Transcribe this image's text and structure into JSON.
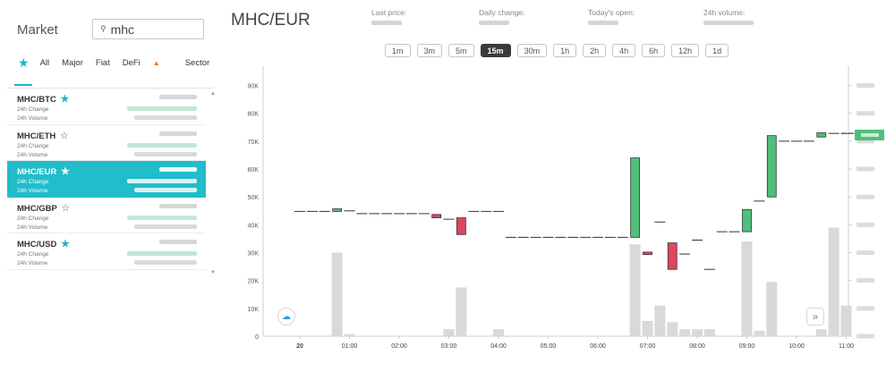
{
  "market": {
    "title": "Market",
    "search": {
      "value": "mhc",
      "icon": "search-icon"
    },
    "filters": [
      "All",
      "Major",
      "Fiat",
      "DeFi",
      "Sector"
    ],
    "change_label": "24h Change",
    "volume_label": "24h Volume",
    "pairs": [
      {
        "name": "MHC/BTC",
        "favorite": true,
        "active": false
      },
      {
        "name": "MHC/ETH",
        "favorite": false,
        "active": false
      },
      {
        "name": "MHC/EUR",
        "favorite": true,
        "active": true
      },
      {
        "name": "MHC/GBP",
        "favorite": false,
        "active": false
      },
      {
        "name": "MHC/USD",
        "favorite": true,
        "active": false
      }
    ]
  },
  "header": {
    "pair": "MHC/EUR",
    "stats": [
      "Last price:",
      "Daily change:",
      "Today's open:",
      "24h volume:"
    ]
  },
  "intervals": [
    "1m",
    "3m",
    "5m",
    "15m",
    "30m",
    "1h",
    "2h",
    "4h",
    "6h",
    "12h",
    "1d"
  ],
  "selected_interval": "15m",
  "colors": {
    "accent": "#21bdca",
    "up": "#4fc07b",
    "down": "#e0455e",
    "volume": "#d9d9d9"
  },
  "chart_data": {
    "type": "candlestick",
    "y_ticks": [
      "90K",
      "80K",
      "70K",
      "60K",
      "50K",
      "40K",
      "30K",
      "20K",
      "10K",
      "0"
    ],
    "x_ticks": [
      "20",
      "01:00",
      "02:00",
      "03:00",
      "04:00",
      "05:00",
      "06:00",
      "07:00",
      "08:00",
      "09:00",
      "10:00",
      "11:00"
    ],
    "ylim": [
      0,
      95000
    ],
    "candles": [
      {
        "t": 0.0,
        "o": 44800,
        "c": 44800
      },
      {
        "t": 0.25,
        "o": 44800,
        "c": 44800
      },
      {
        "t": 0.5,
        "o": 44800,
        "c": 44800
      },
      {
        "t": 0.75,
        "o": 44800,
        "c": 45700
      },
      {
        "t": 1.0,
        "o": 45000,
        "c": 45000
      },
      {
        "t": 1.25,
        "o": 44000,
        "c": 44000
      },
      {
        "t": 1.5,
        "o": 44000,
        "c": 44000
      },
      {
        "t": 1.75,
        "o": 44000,
        "c": 44000
      },
      {
        "t": 2.0,
        "o": 44000,
        "c": 44000
      },
      {
        "t": 2.25,
        "o": 44000,
        "c": 44000
      },
      {
        "t": 2.5,
        "o": 44000,
        "c": 44000
      },
      {
        "t": 2.75,
        "o": 43700,
        "c": 42500
      },
      {
        "t": 3.0,
        "o": 42000,
        "c": 42000
      },
      {
        "t": 3.25,
        "o": 42500,
        "c": 36500
      },
      {
        "t": 3.5,
        "o": 44800,
        "c": 44800
      },
      {
        "t": 3.75,
        "o": 44800,
        "c": 44800
      },
      {
        "t": 4.0,
        "o": 44800,
        "c": 44800
      },
      {
        "t": 4.25,
        "o": 35500,
        "c": 35500
      },
      {
        "t": 4.5,
        "o": 35500,
        "c": 35500
      },
      {
        "t": 4.75,
        "o": 35500,
        "c": 35500
      },
      {
        "t": 5.0,
        "o": 35500,
        "c": 35500
      },
      {
        "t": 5.25,
        "o": 35500,
        "c": 35500
      },
      {
        "t": 5.5,
        "o": 35500,
        "c": 35500
      },
      {
        "t": 5.75,
        "o": 35500,
        "c": 35500
      },
      {
        "t": 6.0,
        "o": 35500,
        "c": 35500
      },
      {
        "t": 6.25,
        "o": 35500,
        "c": 35500
      },
      {
        "t": 6.5,
        "o": 35500,
        "c": 35500
      },
      {
        "t": 6.75,
        "o": 35500,
        "c": 64000
      },
      {
        "t": 7.0,
        "o": 30200,
        "c": 29300
      },
      {
        "t": 7.25,
        "o": 41000,
        "c": 41000
      },
      {
        "t": 7.5,
        "o": 33500,
        "c": 24000
      },
      {
        "t": 7.75,
        "o": 29500,
        "c": 29500
      },
      {
        "t": 8.0,
        "o": 34500,
        "c": 34500
      },
      {
        "t": 8.25,
        "o": 24000,
        "c": 24000
      },
      {
        "t": 8.5,
        "o": 37500,
        "c": 37500
      },
      {
        "t": 8.75,
        "o": 37500,
        "c": 37500
      },
      {
        "t": 9.0,
        "o": 37500,
        "c": 45500
      },
      {
        "t": 9.25,
        "o": 48500,
        "c": 48500
      },
      {
        "t": 9.5,
        "o": 50000,
        "c": 72000
      },
      {
        "t": 9.75,
        "o": 70000,
        "c": 70000
      },
      {
        "t": 10.0,
        "o": 70000,
        "c": 70000
      },
      {
        "t": 10.25,
        "o": 70000,
        "c": 70000
      },
      {
        "t": 10.5,
        "o": 71500,
        "c": 73000
      },
      {
        "t": 10.75,
        "o": 72800,
        "c": 72800
      },
      {
        "t": 11.0,
        "o": 72800,
        "c": 72800
      }
    ],
    "volumes": [
      {
        "t": 0.75,
        "v": 30000
      },
      {
        "t": 1.0,
        "v": 800
      },
      {
        "t": 3.0,
        "v": 2500
      },
      {
        "t": 3.25,
        "v": 17500
      },
      {
        "t": 4.0,
        "v": 2500
      },
      {
        "t": 6.75,
        "v": 33000
      },
      {
        "t": 7.0,
        "v": 5500
      },
      {
        "t": 7.25,
        "v": 11000
      },
      {
        "t": 7.5,
        "v": 5000
      },
      {
        "t": 7.75,
        "v": 2500
      },
      {
        "t": 8.0,
        "v": 2500
      },
      {
        "t": 8.25,
        "v": 2500
      },
      {
        "t": 9.0,
        "v": 34000
      },
      {
        "t": 9.25,
        "v": 2000
      },
      {
        "t": 9.5,
        "v": 19500
      },
      {
        "t": 10.5,
        "v": 2500
      },
      {
        "t": 10.75,
        "v": 39000
      },
      {
        "t": 11.0,
        "v": 11000
      }
    ]
  }
}
